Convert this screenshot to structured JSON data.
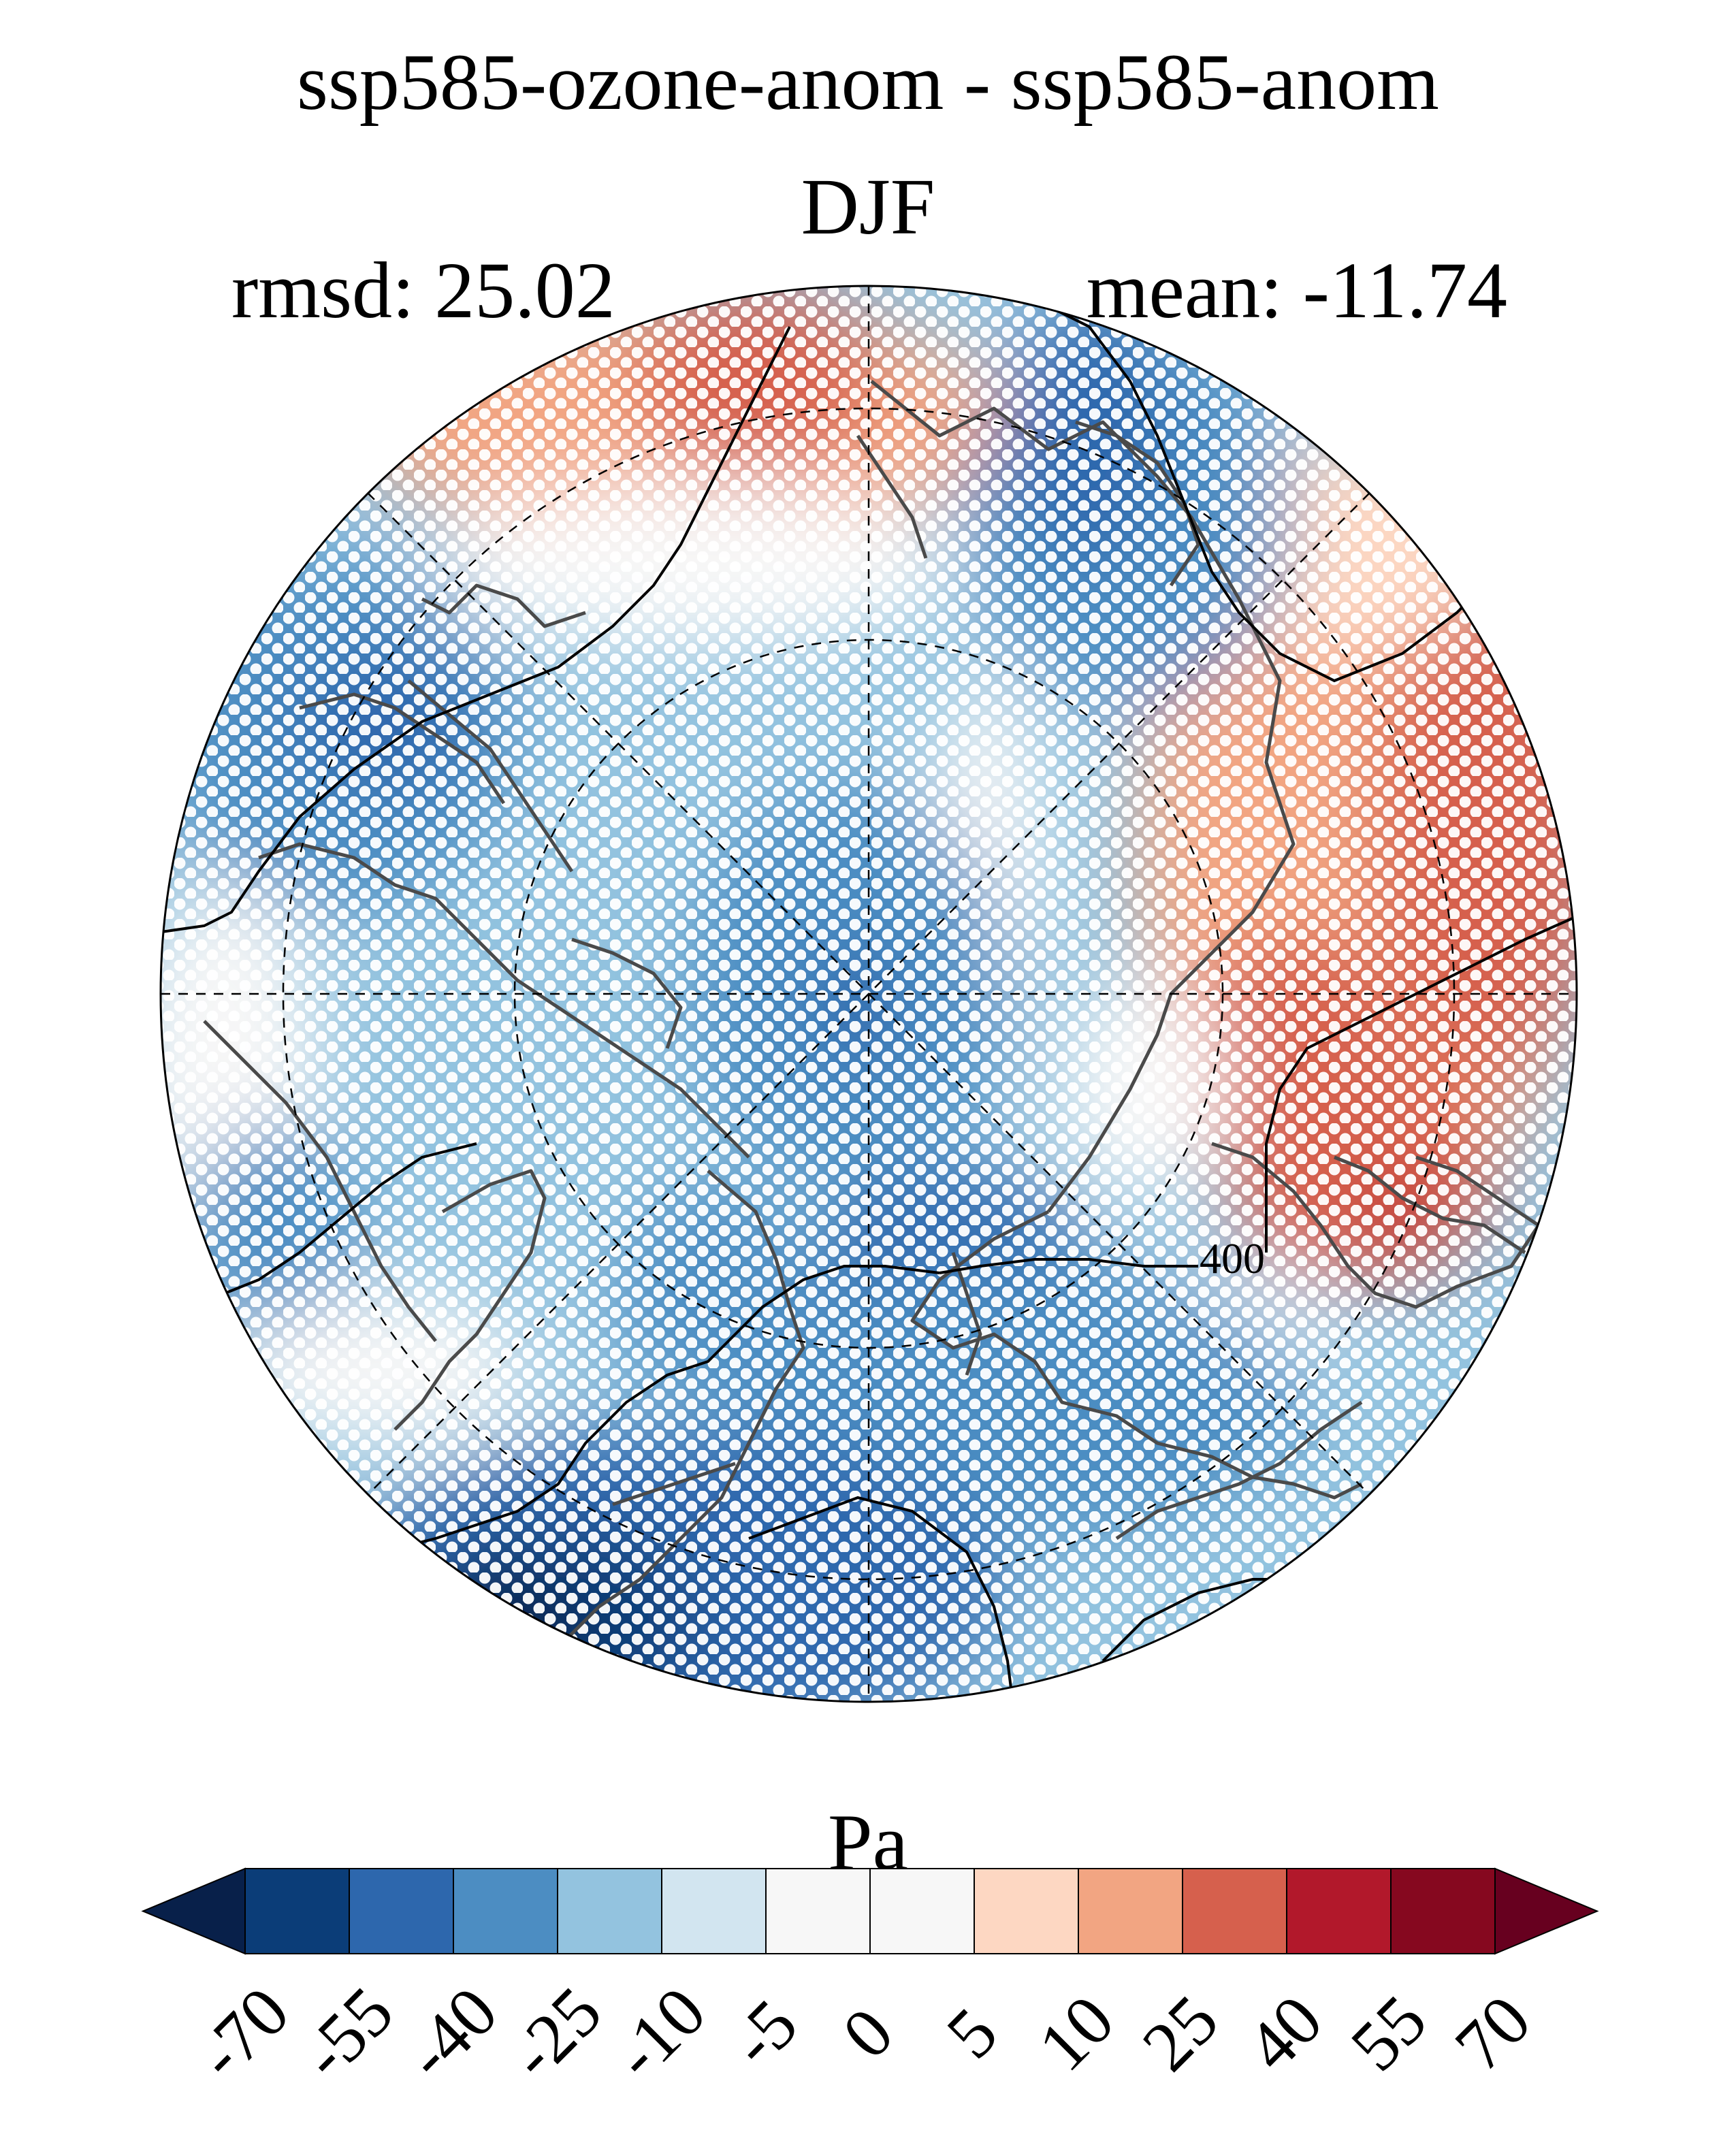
{
  "title": "ssp585-ozone-anom - ssp585-anom",
  "season": "DJF",
  "stats": {
    "rmsd_label": "rmsd: 25.02",
    "mean_label": "mean: -11.74",
    "rmsd": 25.02,
    "mean": -11.74
  },
  "map": {
    "projection": "north-polar-stereographic",
    "contour_label": "400",
    "stippling": "white dots mark significant regions"
  },
  "colorbar": {
    "unit": "Pa",
    "ticks": [
      "-70",
      "-55",
      "-40",
      "-25",
      "-10",
      "-5",
      "0",
      "5",
      "10",
      "25",
      "40",
      "55",
      "70"
    ],
    "colors": [
      "#08204a",
      "#0b3d78",
      "#2d67ad",
      "#4c8dc2",
      "#93c3df",
      "#d2e5f0",
      "#f7f7f7",
      "#f7f7f7",
      "#fdd7c2",
      "#f2a582",
      "#d6604d",
      "#b2182b",
      "#86081f",
      "#67001f"
    ]
  },
  "chart_data": {
    "type": "heatmap",
    "title": "ssp585-ozone-anom - ssp585-anom",
    "subtitle": "DJF",
    "rmsd": 25.02,
    "mean": -11.74,
    "unit": "Pa",
    "levels": [
      -70,
      -55,
      -40,
      -25,
      -10,
      -5,
      0,
      5,
      10,
      25,
      40,
      55,
      70
    ],
    "extend": "both",
    "contour_labels": [
      "400"
    ]
  }
}
